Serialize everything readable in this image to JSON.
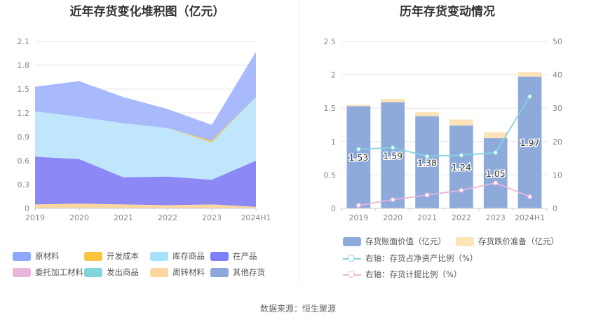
{
  "left_title": "近年存货变化堆积图（亿元）",
  "right_title": "历年存货变动情况",
  "source": "数据来源：恒生聚源",
  "chart_data": [
    {
      "type": "area",
      "stacked": true,
      "x": [
        "2019",
        "2020",
        "2021",
        "2022",
        "2023",
        "2024H1"
      ],
      "ylim": [
        0,
        2.1
      ],
      "yticks": [
        "0",
        "0.3",
        "0.6",
        "0.9",
        "1.2",
        "1.5",
        "1.8",
        "2.1"
      ],
      "legend": [
        {
          "name": "原材料",
          "color": "#8ea8fb"
        },
        {
          "name": "开发成本",
          "color": "#fcc43c"
        },
        {
          "name": "库存商品",
          "color": "#a6e0fb"
        },
        {
          "name": "在产品",
          "color": "#7d7efa"
        },
        {
          "name": "委托加工材料",
          "color": "#e9b5dc"
        },
        {
          "name": "发出商品",
          "color": "#80d6dc"
        },
        {
          "name": "周转材料",
          "color": "#fcd8a0"
        },
        {
          "name": "其他存货",
          "color": "#8ea8dc"
        }
      ],
      "series": [
        {
          "name": "周转材料",
          "color": "#fcd8a0",
          "values": [
            0.05,
            0.06,
            0.05,
            0.04,
            0.05,
            0.02
          ]
        },
        {
          "name": "在产品",
          "color": "#8c88f5",
          "values": [
            0.6,
            0.56,
            0.34,
            0.36,
            0.31,
            0.58
          ]
        },
        {
          "name": "库存商品",
          "color": "#bfe6fb",
          "values": [
            0.57,
            0.53,
            0.68,
            0.61,
            0.47,
            0.8
          ]
        },
        {
          "name": "开发成本",
          "color": "#fcc43c",
          "values": [
            0.0,
            0.0,
            0.0,
            0.0,
            0.02,
            0.0
          ]
        },
        {
          "name": "原材料",
          "color": "#a8bafb",
          "values": [
            0.31,
            0.45,
            0.33,
            0.24,
            0.2,
            0.57
          ]
        }
      ]
    },
    {
      "type": "bar",
      "stacked": true,
      "categories": [
        "2019",
        "2020",
        "2021",
        "2022",
        "2023",
        "2024H1"
      ],
      "ylim": [
        0,
        2.5
      ],
      "yticks": [
        "0",
        "0.5",
        "1",
        "1.5",
        "2",
        "2.5"
      ],
      "y2lim": [
        0,
        50
      ],
      "y2ticks": [
        "0",
        "10",
        "20",
        "30",
        "40",
        "50"
      ],
      "series": [
        {
          "name": "存货账面价值（亿元）",
          "color": "#8eaadb",
          "values": [
            1.53,
            1.59,
            1.38,
            1.24,
            1.05,
            1.97
          ],
          "labels": [
            "1.53",
            "1.59",
            "1.38",
            "1.24",
            "1.05",
            "1.97"
          ]
        },
        {
          "name": "存货跌价准备（亿元）",
          "color": "#fde3b8",
          "values": [
            0.02,
            0.05,
            0.06,
            0.09,
            0.09,
            0.07
          ]
        }
      ],
      "lines": [
        {
          "name": "右轴：存货占净资产比例（%）",
          "color": "#80d6dc",
          "values": [
            17.7,
            18.2,
            15.6,
            15.9,
            16.7,
            33.5
          ]
        },
        {
          "name": "右轴：存货计提比例（%）",
          "color": "#e9b5dc",
          "values": [
            0.9,
            2.6,
            4.0,
            5.4,
            7.6,
            3.5
          ]
        }
      ]
    }
  ]
}
